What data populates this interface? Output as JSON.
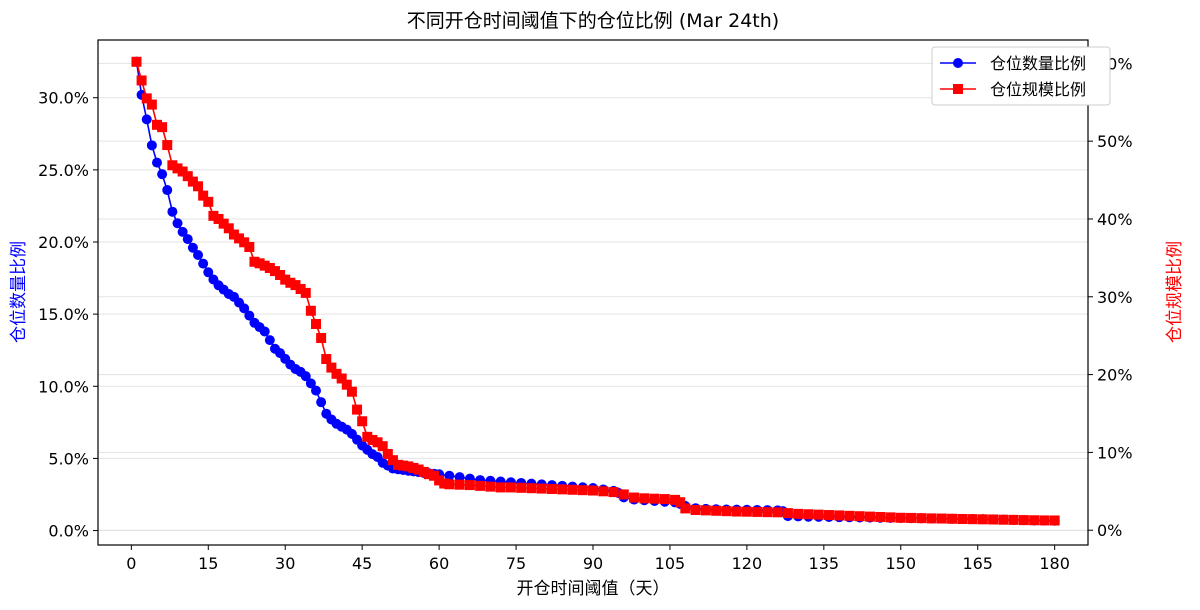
{
  "chart_data": {
    "type": "line",
    "title": "不同开仓时间阈值下的仓位比例 (Mar 24th)",
    "xlabel": "开仓时间阈值（天）",
    "ylabel_left": "仓位数量比例",
    "ylabel_right": "仓位规模比例",
    "xlim": [
      -6.5,
      186.5
    ],
    "ylim_left": [
      -1.0,
      34.0
    ],
    "ylim_right": [
      -1.9,
      63.0
    ],
    "x_ticks": [
      0,
      15,
      30,
      45,
      60,
      75,
      90,
      105,
      120,
      135,
      150,
      165,
      180
    ],
    "y_ticks_left": [
      0,
      5,
      10,
      15,
      20,
      25,
      30
    ],
    "y_ticks_right": [
      0,
      10,
      20,
      30,
      40,
      50,
      60
    ],
    "y_tick_format_left": "{v}.0%",
    "y_tick_format_right": "{v}%",
    "grid": "horizontal",
    "legend_position": "top-right",
    "series": [
      {
        "name": "仓位数量比例",
        "axis": "left",
        "color": "#0000ff",
        "marker": "circle",
        "points": [
          [
            1,
            32.5
          ],
          [
            2,
            30.2
          ],
          [
            3,
            28.5
          ],
          [
            4,
            26.7
          ],
          [
            5,
            25.5
          ],
          [
            6,
            24.7
          ],
          [
            7,
            23.6
          ],
          [
            8,
            22.1
          ],
          [
            9,
            21.3
          ],
          [
            10,
            20.7
          ],
          [
            11,
            20.2
          ],
          [
            12,
            19.6
          ],
          [
            13,
            19.1
          ],
          [
            14,
            18.5
          ],
          [
            15,
            17.9
          ],
          [
            16,
            17.4
          ],
          [
            17,
            17.0
          ],
          [
            18,
            16.7
          ],
          [
            19,
            16.4
          ],
          [
            20,
            16.2
          ],
          [
            21,
            15.8
          ],
          [
            22,
            15.4
          ],
          [
            23,
            14.9
          ],
          [
            24,
            14.4
          ],
          [
            25,
            14.1
          ],
          [
            26,
            13.8
          ],
          [
            27,
            13.2
          ],
          [
            28,
            12.6
          ],
          [
            29,
            12.3
          ],
          [
            30,
            11.9
          ],
          [
            31,
            11.5
          ],
          [
            32,
            11.2
          ],
          [
            33,
            11.0
          ],
          [
            34,
            10.7
          ],
          [
            35,
            10.2
          ],
          [
            36,
            9.7
          ],
          [
            37,
            8.9
          ],
          [
            38,
            8.1
          ],
          [
            39,
            7.7
          ],
          [
            40,
            7.4
          ],
          [
            41,
            7.2
          ],
          [
            42,
            7.0
          ],
          [
            43,
            6.7
          ],
          [
            44,
            6.3
          ],
          [
            45,
            5.9
          ],
          [
            46,
            5.6
          ],
          [
            47,
            5.3
          ],
          [
            48,
            5.1
          ],
          [
            49,
            4.7
          ],
          [
            50,
            4.5
          ],
          [
            51,
            4.3
          ],
          [
            52,
            4.25
          ],
          [
            53,
            4.2
          ],
          [
            54,
            4.15
          ],
          [
            55,
            4.1
          ],
          [
            56,
            4.05
          ],
          [
            57,
            4.0
          ],
          [
            58,
            3.97
          ],
          [
            59,
            3.94
          ],
          [
            60,
            3.9
          ],
          [
            62,
            3.8
          ],
          [
            64,
            3.7
          ],
          [
            66,
            3.6
          ],
          [
            68,
            3.5
          ],
          [
            70,
            3.45
          ],
          [
            72,
            3.4
          ],
          [
            74,
            3.35
          ],
          [
            76,
            3.3
          ],
          [
            78,
            3.25
          ],
          [
            80,
            3.2
          ],
          [
            82,
            3.15
          ],
          [
            84,
            3.1
          ],
          [
            86,
            3.05
          ],
          [
            88,
            3.0
          ],
          [
            90,
            2.95
          ],
          [
            92,
            2.85
          ],
          [
            94,
            2.75
          ],
          [
            95,
            2.6
          ],
          [
            96,
            2.3
          ],
          [
            98,
            2.15
          ],
          [
            100,
            2.1
          ],
          [
            102,
            2.05
          ],
          [
            104,
            2.0
          ],
          [
            106,
            1.95
          ],
          [
            107,
            1.85
          ],
          [
            108,
            1.7
          ],
          [
            110,
            1.55
          ],
          [
            112,
            1.5
          ],
          [
            114,
            1.48
          ],
          [
            116,
            1.46
          ],
          [
            118,
            1.45
          ],
          [
            120,
            1.44
          ],
          [
            122,
            1.43
          ],
          [
            124,
            1.42
          ],
          [
            126,
            1.4
          ],
          [
            127,
            1.35
          ],
          [
            128,
            1.0
          ],
          [
            130,
            0.98
          ],
          [
            132,
            0.96
          ],
          [
            134,
            0.95
          ],
          [
            136,
            0.94
          ],
          [
            138,
            0.93
          ],
          [
            140,
            0.92
          ],
          [
            142,
            0.91
          ],
          [
            144,
            0.9
          ],
          [
            146,
            0.89
          ],
          [
            148,
            0.88
          ],
          [
            150,
            0.87
          ],
          [
            152,
            0.86
          ],
          [
            154,
            0.85
          ],
          [
            156,
            0.84
          ],
          [
            158,
            0.83
          ],
          [
            160,
            0.82
          ],
          [
            162,
            0.81
          ],
          [
            164,
            0.8
          ],
          [
            166,
            0.79
          ],
          [
            168,
            0.78
          ],
          [
            170,
            0.76
          ],
          [
            172,
            0.74
          ],
          [
            174,
            0.72
          ],
          [
            176,
            0.7
          ],
          [
            178,
            0.69
          ],
          [
            180,
            0.68
          ]
        ]
      },
      {
        "name": "仓位规模比例",
        "axis": "right",
        "color": "#ff0000",
        "marker": "square",
        "points": [
          [
            1,
            60.2
          ],
          [
            2,
            57.8
          ],
          [
            3,
            55.5
          ],
          [
            4,
            54.7
          ],
          [
            5,
            52.1
          ],
          [
            6,
            51.8
          ],
          [
            7,
            49.5
          ],
          [
            8,
            46.9
          ],
          [
            9,
            46.5
          ],
          [
            10,
            46.1
          ],
          [
            11,
            45.5
          ],
          [
            12,
            44.8
          ],
          [
            13,
            44.2
          ],
          [
            14,
            43.0
          ],
          [
            15,
            42.2
          ],
          [
            16,
            40.4
          ],
          [
            17,
            40.0
          ],
          [
            18,
            39.4
          ],
          [
            19,
            38.8
          ],
          [
            20,
            38.0
          ],
          [
            21,
            37.5
          ],
          [
            22,
            37.0
          ],
          [
            23,
            36.4
          ],
          [
            24,
            34.5
          ],
          [
            25,
            34.3
          ],
          [
            26,
            34.0
          ],
          [
            27,
            33.7
          ],
          [
            28,
            33.3
          ],
          [
            29,
            32.8
          ],
          [
            30,
            32.2
          ],
          [
            31,
            31.8
          ],
          [
            32,
            31.5
          ],
          [
            33,
            31.0
          ],
          [
            34,
            30.5
          ],
          [
            35,
            28.2
          ],
          [
            36,
            26.5
          ],
          [
            37,
            24.7
          ],
          [
            38,
            22.0
          ],
          [
            39,
            20.9
          ],
          [
            40,
            20.1
          ],
          [
            41,
            19.5
          ],
          [
            42,
            18.7
          ],
          [
            43,
            17.8
          ],
          [
            44,
            15.5
          ],
          [
            45,
            14.0
          ],
          [
            46,
            12.0
          ],
          [
            47,
            11.6
          ],
          [
            48,
            11.3
          ],
          [
            49,
            10.8
          ],
          [
            50,
            9.8
          ],
          [
            51,
            9.0
          ],
          [
            52,
            8.4
          ],
          [
            53,
            8.3
          ],
          [
            54,
            8.2
          ],
          [
            55,
            8.0
          ],
          [
            56,
            7.8
          ],
          [
            57,
            7.5
          ],
          [
            58,
            7.2
          ],
          [
            59,
            7.0
          ],
          [
            60,
            6.4
          ],
          [
            61,
            6.0
          ],
          [
            62,
            5.9
          ],
          [
            64,
            5.85
          ],
          [
            66,
            5.8
          ],
          [
            68,
            5.7
          ],
          [
            70,
            5.6
          ],
          [
            72,
            5.5
          ],
          [
            74,
            5.5
          ],
          [
            76,
            5.45
          ],
          [
            78,
            5.4
          ],
          [
            80,
            5.35
          ],
          [
            82,
            5.3
          ],
          [
            84,
            5.25
          ],
          [
            86,
            5.2
          ],
          [
            88,
            5.15
          ],
          [
            90,
            5.1
          ],
          [
            92,
            5.0
          ],
          [
            94,
            4.9
          ],
          [
            96,
            4.6
          ],
          [
            98,
            4.2
          ],
          [
            100,
            4.1
          ],
          [
            102,
            4.05
          ],
          [
            104,
            4.0
          ],
          [
            106,
            3.9
          ],
          [
            107,
            3.6
          ],
          [
            108,
            2.8
          ],
          [
            110,
            2.6
          ],
          [
            112,
            2.55
          ],
          [
            114,
            2.5
          ],
          [
            116,
            2.45
          ],
          [
            118,
            2.4
          ],
          [
            120,
            2.38
          ],
          [
            122,
            2.35
          ],
          [
            124,
            2.32
          ],
          [
            126,
            2.3
          ],
          [
            128,
            2.2
          ],
          [
            130,
            2.1
          ],
          [
            132,
            2.05
          ],
          [
            134,
            2.0
          ],
          [
            136,
            1.95
          ],
          [
            138,
            1.9
          ],
          [
            140,
            1.85
          ],
          [
            142,
            1.8
          ],
          [
            144,
            1.75
          ],
          [
            146,
            1.7
          ],
          [
            148,
            1.65
          ],
          [
            150,
            1.6
          ],
          [
            152,
            1.58
          ],
          [
            154,
            1.55
          ],
          [
            156,
            1.52
          ],
          [
            158,
            1.5
          ],
          [
            160,
            1.47
          ],
          [
            162,
            1.44
          ],
          [
            164,
            1.42
          ],
          [
            166,
            1.4
          ],
          [
            168,
            1.38
          ],
          [
            170,
            1.35
          ],
          [
            172,
            1.33
          ],
          [
            174,
            1.3
          ],
          [
            176,
            1.28
          ],
          [
            178,
            1.26
          ],
          [
            180,
            1.25
          ]
        ]
      }
    ]
  }
}
